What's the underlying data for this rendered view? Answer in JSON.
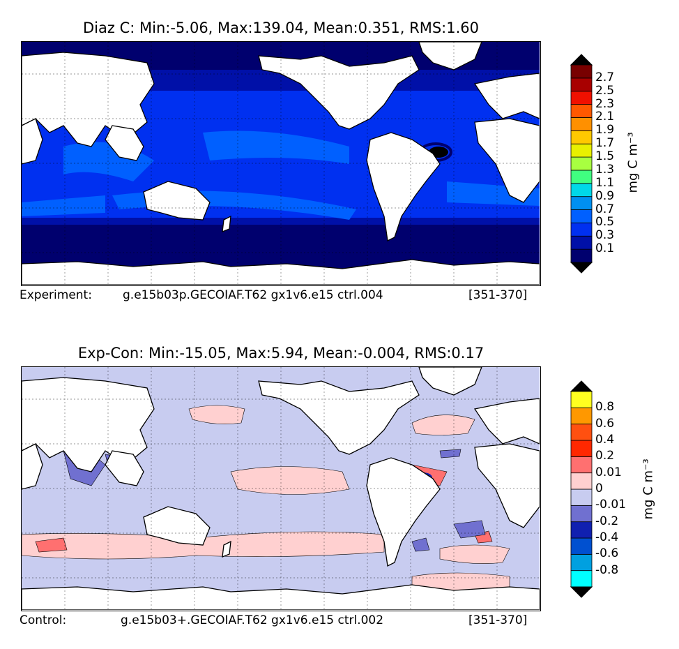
{
  "top": {
    "title": "Diaz C: Min:-5.06, Max:139.04, Mean:0.351, RMS:1.60",
    "footer_left": "Experiment:",
    "footer_case": "g.e15b03p.GECOIAF.T62 gx1v6.e15 ctrl.004",
    "footer_years": "[351-370]",
    "unit": "mg C m⁻³",
    "colorbar": {
      "levels": [
        "0.1",
        "0.3",
        "0.5",
        "0.7",
        "0.9",
        "1.1",
        "1.3",
        "1.5",
        "1.7",
        "1.9",
        "2.1",
        "2.3",
        "2.5",
        "2.7"
      ],
      "colors": [
        "#00006e",
        "#0010a8",
        "#0030f0",
        "#0060ff",
        "#0090f0",
        "#00d8e8",
        "#40ff80",
        "#a8ff40",
        "#e8f000",
        "#ffc800",
        "#ff9000",
        "#ff5800",
        "#f01000",
        "#a80000",
        "#780000"
      ],
      "arrow_low": "#000000",
      "arrow_high": "#000000"
    }
  },
  "bottom": {
    "title": "Exp-Con: Min:-15.05, Max:5.94, Mean:-0.004, RMS:0.17",
    "footer_left": "Control:",
    "footer_case": "g.e15b03+.GECOIAF.T62 gx1v6.e15 ctrl.002",
    "footer_years": "[351-370]",
    "unit": "mg C m⁻³",
    "colorbar": {
      "levels": [
        "-0.8",
        "-0.6",
        "-0.4",
        "-0.2",
        "-0.01",
        "0",
        "0.01",
        "0.2",
        "0.4",
        "0.6",
        "0.8"
      ],
      "colors": [
        "#00ffff",
        "#00a0e0",
        "#0050d0",
        "#1020b0",
        "#7070d0",
        "#c8ccf0",
        "#ffd0d0",
        "#ff7070",
        "#ff2800",
        "#ff5010",
        "#ff9800",
        "#ffff20"
      ],
      "arrow_low": "#000000",
      "arrow_high": "#000000"
    }
  }
}
